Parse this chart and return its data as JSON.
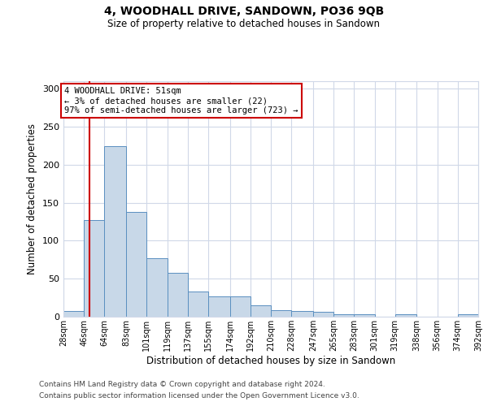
{
  "title1": "4, WOODHALL DRIVE, SANDOWN, PO36 9QB",
  "title2": "Size of property relative to detached houses in Sandown",
  "xlabel": "Distribution of detached houses by size in Sandown",
  "ylabel": "Number of detached properties",
  "bin_labels": [
    "28sqm",
    "46sqm",
    "64sqm",
    "83sqm",
    "101sqm",
    "119sqm",
    "137sqm",
    "155sqm",
    "174sqm",
    "192sqm",
    "210sqm",
    "228sqm",
    "247sqm",
    "265sqm",
    "283sqm",
    "301sqm",
    "319sqm",
    "338sqm",
    "356sqm",
    "374sqm",
    "392sqm"
  ],
  "bin_edges": [
    28,
    46,
    64,
    83,
    101,
    119,
    137,
    155,
    174,
    192,
    210,
    228,
    247,
    265,
    283,
    301,
    319,
    338,
    356,
    374,
    392
  ],
  "bar_heights": [
    7,
    127,
    225,
    138,
    77,
    58,
    33,
    27,
    27,
    15,
    9,
    8,
    6,
    3,
    3,
    0,
    3,
    0,
    0,
    3,
    0
  ],
  "bar_color": "#c8d8e8",
  "bar_edge_color": "#5a8fc0",
  "grid_color": "#d0d8e8",
  "property_size": 51,
  "red_line_color": "#cc0000",
  "annotation_text": "4 WOODHALL DRIVE: 51sqm\n← 3% of detached houses are smaller (22)\n97% of semi-detached houses are larger (723) →",
  "annotation_box_color": "#ffffff",
  "annotation_box_edge_color": "#cc0000",
  "ylim": [
    0,
    310
  ],
  "yticks": [
    0,
    50,
    100,
    150,
    200,
    250,
    300
  ],
  "footer1": "Contains HM Land Registry data © Crown copyright and database right 2024.",
  "footer2": "Contains public sector information licensed under the Open Government Licence v3.0."
}
